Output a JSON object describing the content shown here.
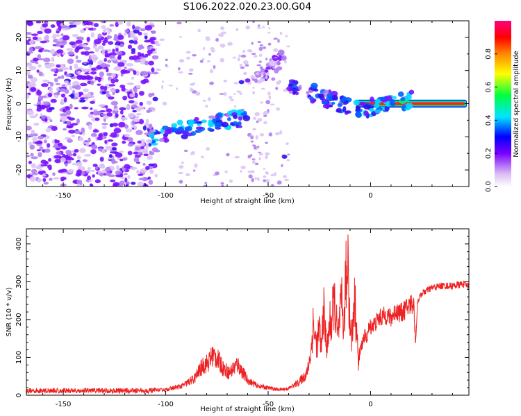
{
  "title": "S106.2022.020.23.00.G04",
  "chart_data": [
    {
      "type": "heatmap",
      "xlabel": "Height of straight line (km)",
      "ylabel": "Frequency (Hz)",
      "xlim": [
        -168,
        48
      ],
      "ylim": [
        -25,
        25
      ],
      "xticks": [
        -150,
        -100,
        -50,
        0
      ],
      "yticks": [
        -20,
        -10,
        0,
        10,
        20
      ],
      "colorbar": {
        "label": "Normalized spectral amplitude",
        "range": [
          0.0,
          1.0
        ],
        "ticks": [
          "0.0",
          "0.2",
          "0.4",
          "0.6",
          "0.8"
        ],
        "colormap": "rainbow"
      },
      "features": [
        {
          "name": "stationary tone",
          "x": [
            -7,
            47
          ],
          "y": 0.0,
          "amplitude": 0.95
        },
        {
          "name": "sloped streak",
          "x": [
            -108,
            -60
          ],
          "y": [
            -10,
            -4
          ],
          "amplitude": 0.5
        },
        {
          "name": "upper sloped streak",
          "x": [
            -58,
            -42
          ],
          "y": [
            6,
            14
          ],
          "amplitude": 0.25
        },
        {
          "name": "converging streak",
          "x": [
            -40,
            -10
          ],
          "y": [
            6,
            -1
          ],
          "amplitude": 0.4
        },
        {
          "name": "near-zero band",
          "x": [
            -7,
            20
          ],
          "y": [
            -2,
            1
          ],
          "amplitude": 0.55
        },
        {
          "name": "noise",
          "x": [
            -168,
            -105
          ],
          "y": [
            -25,
            25
          ],
          "amplitude": 0.1
        }
      ]
    },
    {
      "type": "line",
      "xlabel": "Height of straight line (km)",
      "ylabel": "SNR (10 * v/v)",
      "xlim": [
        -168,
        48
      ],
      "ylim": [
        0,
        440
      ],
      "xticks": [
        -150,
        -100,
        -50,
        0
      ],
      "yticks": [
        0,
        100,
        200,
        300,
        400
      ],
      "color": "#ee2222",
      "series": [
        {
          "x": [
            -168,
            -150,
            -130,
            -110,
            -100,
            -92,
            -86,
            -82,
            -79,
            -77,
            -75,
            -72,
            -69,
            -65,
            -60,
            -55,
            -50,
            -45,
            -40,
            -35,
            -31,
            -29,
            -28,
            -27,
            -26,
            -25,
            -24,
            -23,
            -22,
            -21,
            -20,
            -19,
            -18,
            -17,
            -16,
            -15,
            -14,
            -13,
            -12,
            -11.5,
            -11,
            -10.5,
            -10,
            -9,
            -8,
            -7,
            -6,
            -5,
            -4,
            -3,
            -2,
            -1,
            0,
            2,
            4,
            6,
            8,
            10,
            12,
            15,
            18,
            21,
            22,
            23,
            25,
            30,
            35,
            40,
            45,
            48
          ],
          "y": [
            12,
            12,
            12,
            12,
            15,
            25,
            45,
            80,
            90,
            110,
            100,
            75,
            60,
            85,
            40,
            25,
            20,
            15,
            18,
            35,
            60,
            120,
            200,
            150,
            140,
            180,
            120,
            240,
            160,
            130,
            200,
            190,
            260,
            220,
            150,
            210,
            250,
            180,
            330,
            280,
            440,
            250,
            200,
            150,
            270,
            200,
            90,
            120,
            140,
            160,
            150,
            175,
            185,
            190,
            205,
            210,
            215,
            205,
            225,
            220,
            235,
            250,
            140,
            250,
            270,
            285,
            290,
            290,
            295,
            290
          ]
        }
      ]
    }
  ]
}
